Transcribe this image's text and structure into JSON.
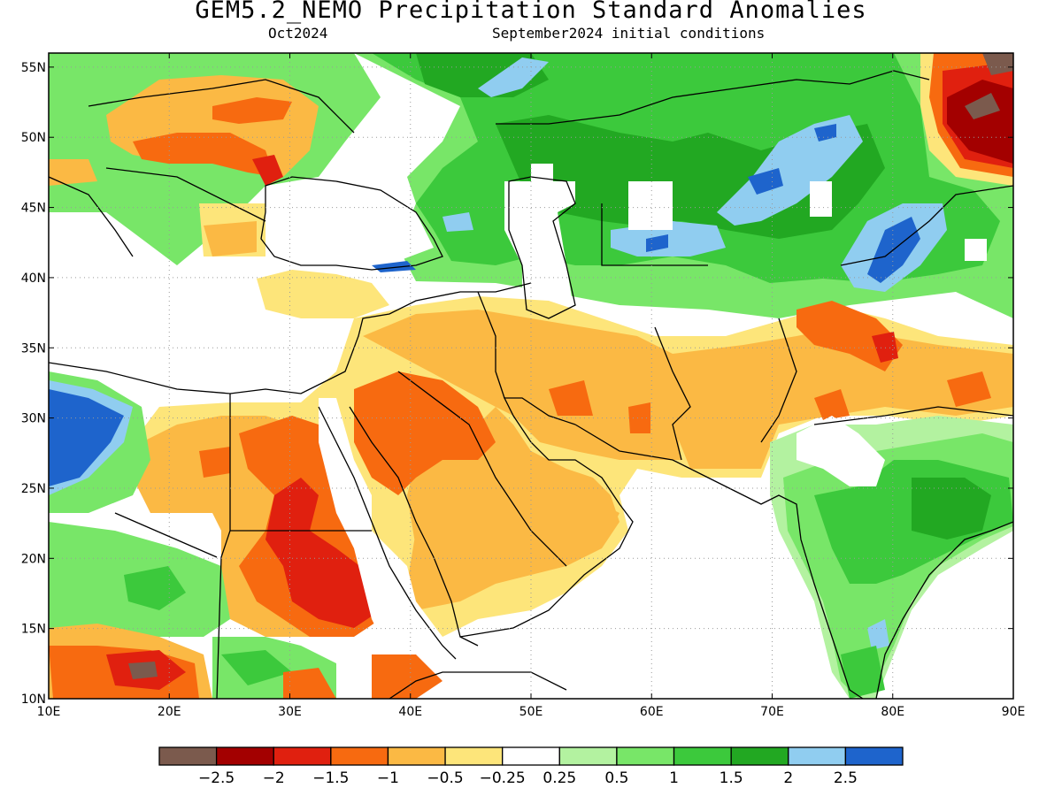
{
  "header": {
    "title": "GEM5.2_NEMO Precipitation Standard Anomalies",
    "month": "Oct2024",
    "init": "September2024 initial conditions"
  },
  "map": {
    "lon_range": [
      10,
      90
    ],
    "lat_range": [
      10,
      56
    ],
    "lon_ticks": [
      {
        "v": 10,
        "label": "10E"
      },
      {
        "v": 20,
        "label": "20E"
      },
      {
        "v": 30,
        "label": "30E"
      },
      {
        "v": 40,
        "label": "40E"
      },
      {
        "v": 50,
        "label": "50E"
      },
      {
        "v": 60,
        "label": "60E"
      },
      {
        "v": 70,
        "label": "70E"
      },
      {
        "v": 80,
        "label": "80E"
      },
      {
        "v": 90,
        "label": "90E"
      }
    ],
    "lat_ticks": [
      {
        "v": 10,
        "label": "10N"
      },
      {
        "v": 15,
        "label": "15N"
      },
      {
        "v": 20,
        "label": "20N"
      },
      {
        "v": 25,
        "label": "25N"
      },
      {
        "v": 30,
        "label": "30N"
      },
      {
        "v": 35,
        "label": "35N"
      },
      {
        "v": 40,
        "label": "40N"
      },
      {
        "v": 45,
        "label": "45N"
      },
      {
        "v": 50,
        "label": "50N"
      },
      {
        "v": 55,
        "label": "55N"
      }
    ],
    "grid": true
  },
  "colorbar": {
    "colors": [
      "#7b5a4d",
      "#a30000",
      "#e0200f",
      "#f76a10",
      "#fbb944",
      "#fde57a",
      "#ffffff",
      "#b3f2a0",
      "#78e668",
      "#3cc93c",
      "#22a822",
      "#90cdf0",
      "#1e64cc"
    ],
    "labels": [
      "−2.5",
      "−2",
      "−1.5",
      "−1",
      "−0.5",
      "−0.25",
      "0.25",
      "0.5",
      "1",
      "1.5",
      "2",
      "2.5"
    ]
  },
  "palette": {
    "brown": "#7b5a4d",
    "darkred": "#a30000",
    "red": "#e0200f",
    "orange": "#f76a10",
    "lightorange": "#fbb944",
    "yellow": "#fde57a",
    "white": "#ffffff",
    "palegreen": "#b3f2a0",
    "lightgreen": "#78e668",
    "green": "#3cc93c",
    "darkgreen": "#22a822",
    "lightblue": "#90cdf0",
    "blue": "#1e64cc"
  }
}
